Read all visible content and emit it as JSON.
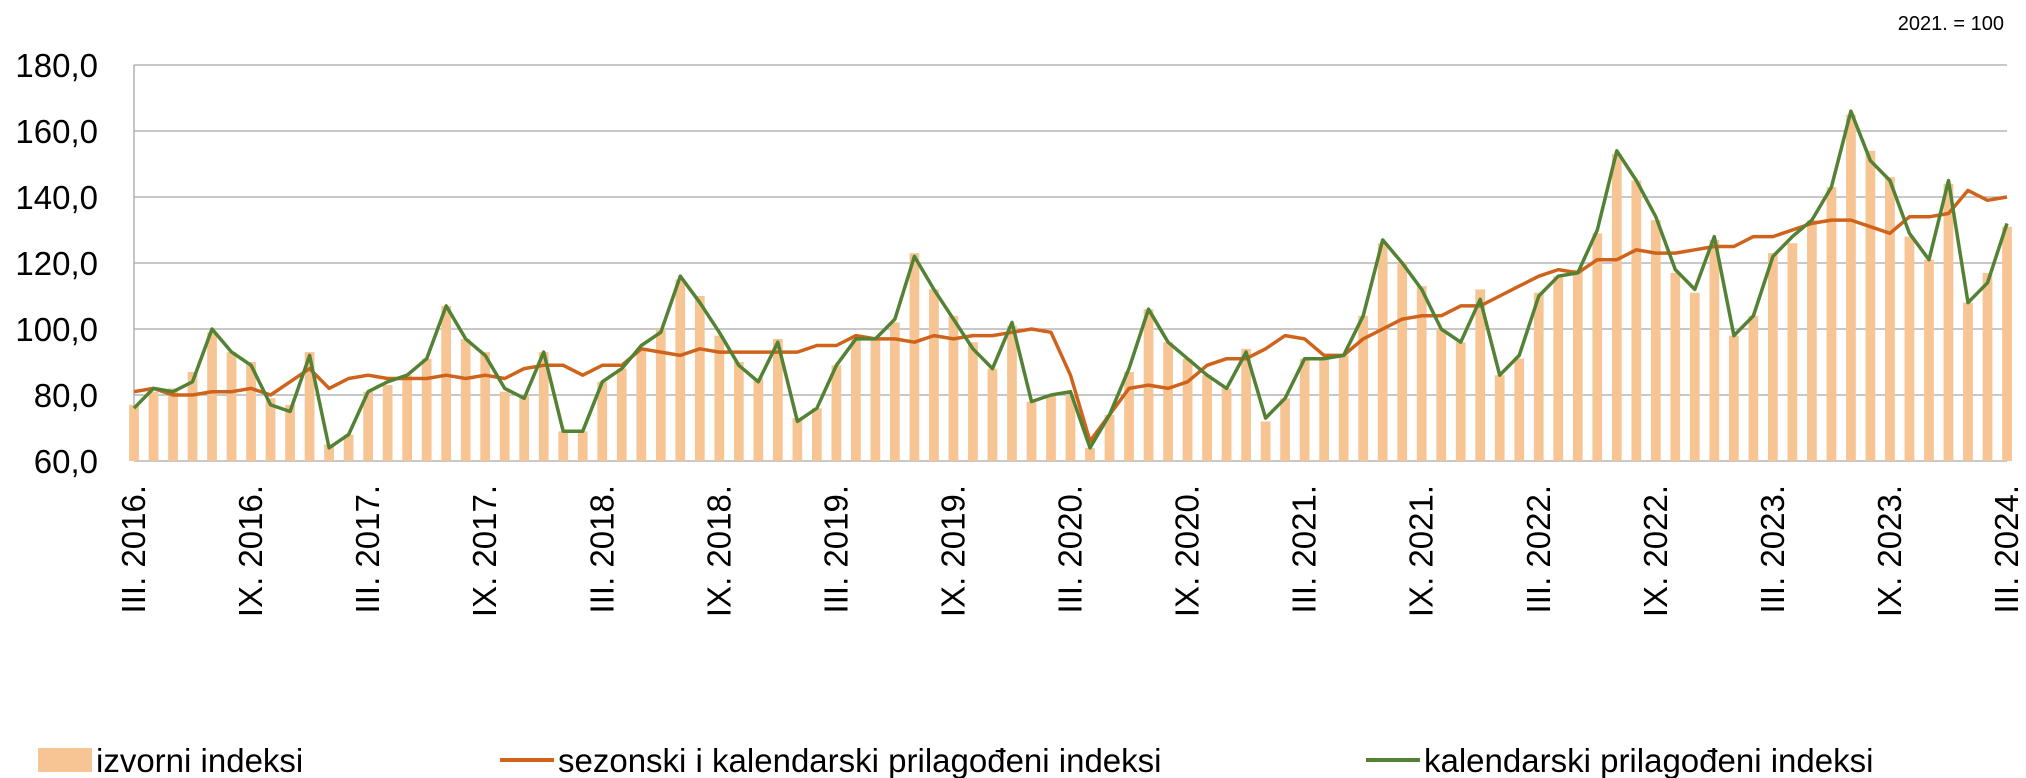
{
  "chart_data": {
    "type": "combo",
    "note": "2021. = 100",
    "categories": [
      "III. 2016.",
      null,
      null,
      null,
      null,
      null,
      "IX. 2016.",
      null,
      null,
      null,
      null,
      null,
      "III. 2017.",
      null,
      null,
      null,
      null,
      null,
      "IX. 2017.",
      null,
      null,
      null,
      null,
      null,
      "III. 2018.",
      null,
      null,
      null,
      null,
      null,
      "IX. 2018.",
      null,
      null,
      null,
      null,
      null,
      "III. 2019.",
      null,
      null,
      null,
      null,
      null,
      "IX. 2019.",
      null,
      null,
      null,
      null,
      null,
      "III. 2020.",
      null,
      null,
      null,
      null,
      null,
      "IX. 2020.",
      null,
      null,
      null,
      null,
      null,
      "III. 2021.",
      null,
      null,
      null,
      null,
      null,
      "IX. 2021.",
      null,
      null,
      null,
      null,
      null,
      "III. 2022.",
      null,
      null,
      null,
      null,
      null,
      "IX. 2022.",
      null,
      null,
      null,
      null,
      null,
      "III. 2023.",
      null,
      null,
      null,
      null,
      null,
      "IX. 2023.",
      null,
      null,
      null,
      null,
      null,
      "III. 2024."
    ],
    "series": [
      {
        "name": "izvorni indeksi",
        "type": "bar",
        "color": "#f7c594",
        "values": [
          77,
          81,
          82,
          87,
          99,
          93,
          90,
          79,
          77,
          93,
          65,
          68,
          81,
          83,
          86,
          91,
          107,
          97,
          93,
          81,
          80,
          93,
          69,
          69,
          84,
          88,
          94,
          100,
          115,
          110,
          98,
          90,
          85,
          97,
          73,
          76,
          89,
          97,
          97,
          102,
          123,
          112,
          104,
          96,
          88,
          101,
          78,
          80,
          80,
          64,
          74,
          87,
          106,
          96,
          91,
          86,
          82,
          94,
          72,
          79,
          91,
          91,
          92,
          104,
          126,
          120,
          113,
          100,
          96,
          112,
          86,
          91,
          111,
          116,
          118,
          129,
          153,
          145,
          133,
          117,
          111,
          127,
          98,
          104,
          123,
          126,
          133,
          143,
          165,
          154,
          146,
          128,
          121,
          144,
          108,
          117,
          131
        ]
      },
      {
        "name": "sezonski i kalendarski prilagođeni indeksi",
        "type": "line",
        "color": "#d0631b",
        "values": [
          81,
          82,
          80,
          80,
          81,
          81,
          82,
          80,
          84,
          88,
          82,
          85,
          86,
          85,
          85,
          85,
          86,
          85,
          86,
          85,
          88,
          89,
          89,
          86,
          89,
          89,
          94,
          93,
          92,
          94,
          93,
          93,
          93,
          93,
          93,
          95,
          95,
          98,
          97,
          97,
          96,
          98,
          97,
          98,
          98,
          99,
          100,
          99,
          86,
          66,
          74,
          82,
          83,
          82,
          84,
          89,
          91,
          91,
          94,
          98,
          97,
          92,
          92,
          97,
          100,
          103,
          104,
          104,
          107,
          107,
          110,
          113,
          116,
          118,
          117,
          121,
          121,
          124,
          123,
          123,
          124,
          125,
          125,
          128,
          128,
          130,
          132,
          133,
          133,
          131,
          129,
          134,
          134,
          135,
          142,
          139,
          140
        ]
      },
      {
        "name": "kalendarski prilagođeni indeksi",
        "type": "line",
        "color": "#548235",
        "values": [
          76,
          82,
          81,
          84,
          100,
          93,
          89,
          77,
          75,
          92,
          64,
          68,
          81,
          84,
          86,
          91,
          107,
          97,
          92,
          82,
          79,
          93,
          69,
          69,
          84,
          88,
          95,
          99,
          116,
          108,
          99,
          89,
          84,
          96,
          72,
          76,
          89,
          97,
          97,
          103,
          122,
          112,
          103,
          94,
          88,
          102,
          78,
          80,
          81,
          64,
          74,
          88,
          106,
          96,
          91,
          86,
          82,
          93,
          73,
          79,
          91,
          91,
          92,
          104,
          127,
          120,
          112,
          100,
          96,
          109,
          86,
          92,
          110,
          116,
          117,
          130,
          154,
          145,
          134,
          118,
          112,
          128,
          98,
          104,
          122,
          128,
          133,
          143,
          166,
          151,
          145,
          129,
          121,
          145,
          108,
          114,
          132
        ]
      }
    ],
    "ylim": [
      60,
      180
    ],
    "yticks": [
      {
        "value": 60,
        "label": "60,0"
      },
      {
        "value": 80,
        "label": "80,0"
      },
      {
        "value": 100,
        "label": "100,0"
      },
      {
        "value": 120,
        "label": "120,0"
      },
      {
        "value": 140,
        "label": "140,0"
      },
      {
        "value": 160,
        "label": "160,0"
      },
      {
        "value": 180,
        "label": "180,0"
      }
    ],
    "grid": true,
    "legend": "bottom"
  }
}
